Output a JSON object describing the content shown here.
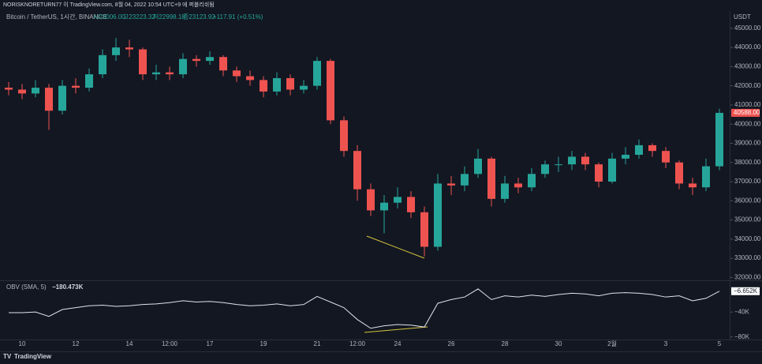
{
  "header": {
    "publisher": "NORISKNORETURN77 이 TradingView.com, 8월 04, 2022 10:54 UTC+9 에 퍼블리쉬됨",
    "currency": "USDT",
    "footer": "TradingView"
  },
  "chart_data": [
    {
      "type": "candlestick",
      "title": "Bitcoin / TetherUS, 1시간, BINANCE",
      "legend": [
        "시23006.00",
        "고23223.32",
        "저22998.18",
        "종23123.92",
        "+117.91 (+0.51%)"
      ],
      "categories": [
        "",
        "10",
        "",
        "",
        "",
        "12",
        "",
        "",
        "",
        "14",
        "",
        "",
        "12:00",
        "",
        "",
        "17",
        "",
        "",
        "",
        "19",
        "",
        "",
        "",
        "21",
        "",
        "",
        "12:00",
        "",
        "",
        "24",
        "",
        "",
        "",
        "26",
        "",
        "",
        "",
        "28",
        "",
        "",
        "",
        "30",
        "",
        "",
        "",
        "2월",
        "",
        "",
        "",
        "3",
        "",
        "",
        "",
        "5"
      ],
      "open": [
        41900,
        41800,
        41600,
        41900,
        40700,
        42000,
        41900,
        42600,
        43600,
        44000,
        43900,
        42600,
        42700,
        42600,
        43400,
        43300,
        43500,
        42800,
        42500,
        42300,
        41700,
        42400,
        41800,
        42000,
        43300,
        40200,
        38600,
        36600,
        35500,
        35900,
        36200,
        35400,
        33600,
        36900,
        36800,
        37400,
        38200,
        36100,
        36900,
        36700,
        37400,
        37900,
        37900,
        38300,
        37900,
        37000,
        38200,
        38400,
        38900,
        38600,
        38000,
        36900,
        36700,
        37800
      ],
      "high": [
        42200,
        42100,
        42300,
        42100,
        42300,
        42400,
        42900,
        43900,
        44500,
        44400,
        44000,
        43100,
        43000,
        43700,
        43600,
        43800,
        43600,
        43000,
        42800,
        42500,
        42700,
        42600,
        42300,
        43500,
        43400,
        40400,
        38900,
        36900,
        36300,
        36700,
        36500,
        35700,
        37400,
        37300,
        37800,
        38700,
        38300,
        37300,
        37200,
        37700,
        38100,
        38300,
        38600,
        38500,
        38000,
        38500,
        38800,
        39200,
        39000,
        38800,
        38100,
        37200,
        38200,
        40800
      ],
      "low": [
        41500,
        41300,
        41400,
        39700,
        40500,
        41600,
        41700,
        42400,
        43300,
        43500,
        42300,
        42300,
        42300,
        42400,
        43000,
        43100,
        42500,
        42200,
        42000,
        41400,
        41500,
        41500,
        41600,
        41800,
        40000,
        38300,
        36000,
        35200,
        34300,
        35600,
        35100,
        33100,
        33400,
        36300,
        36500,
        37200,
        35700,
        35900,
        36400,
        36500,
        37200,
        37500,
        37600,
        37600,
        36700,
        36900,
        37900,
        38200,
        38300,
        37700,
        36600,
        36300,
        36500,
        37600
      ],
      "close": [
        41800,
        41600,
        41900,
        40700,
        42000,
        41900,
        42600,
        43600,
        44000,
        43900,
        42600,
        42700,
        42600,
        43400,
        43300,
        43500,
        42800,
        42500,
        42300,
        41700,
        42400,
        41800,
        42000,
        43300,
        40200,
        38600,
        36600,
        35500,
        35900,
        36200,
        35400,
        33600,
        36900,
        36800,
        37400,
        38200,
        36100,
        36900,
        36700,
        37400,
        37900,
        37900,
        38300,
        37900,
        37000,
        38200,
        38400,
        38900,
        38600,
        38000,
        36900,
        36700,
        37800,
        40588
      ],
      "last_value_label": "40588.00",
      "up_color": "#26a69a",
      "down_color": "#ef5350",
      "ylim": [
        31850,
        45900
      ],
      "yticks": [
        {
          "value": 32000,
          "label": "32000.00"
        },
        {
          "value": 33000,
          "label": "33000.00"
        },
        {
          "value": 34000,
          "label": "34000.00"
        },
        {
          "value": 35000,
          "label": "35000.00"
        },
        {
          "value": 36000,
          "label": "36000.00"
        },
        {
          "value": 37000,
          "label": "37000.00"
        },
        {
          "value": 38000,
          "label": "38000.00"
        },
        {
          "value": 39000,
          "label": "39000.00"
        },
        {
          "value": 40000,
          "label": "40000.00"
        },
        {
          "value": 41000,
          "label": "41000.00"
        },
        {
          "value": 42000,
          "label": "42000.00"
        },
        {
          "value": 43000,
          "label": "43000.00"
        },
        {
          "value": 44000,
          "label": "44000.00"
        },
        {
          "value": 45000,
          "label": "45000.00"
        }
      ]
    },
    {
      "type": "line",
      "title": "OBV (SMA, 5)",
      "legend_value": "−180.473K",
      "color": "#e0e3eb",
      "values": [
        -41,
        -41,
        -40,
        -47,
        -36,
        -33,
        -30,
        -29,
        -31,
        -30,
        -28,
        -27,
        -25,
        -22,
        -24,
        -23,
        -25,
        -28,
        -30,
        -29,
        -27,
        -30,
        -28,
        -15,
        -24,
        -33,
        -52,
        -66,
        -62,
        -60,
        -61,
        -64,
        -26,
        -20,
        -16,
        -3,
        -20,
        -14,
        -16,
        -13,
        -15,
        -12,
        -10,
        -11,
        -14,
        -10,
        -9,
        -10,
        -12,
        -16,
        -14,
        -22,
        -18,
        -6.652
      ],
      "last_value_label": "−6.652K",
      "ylim": [
        -84,
        9.5
      ],
      "yticks": [
        {
          "value": -40,
          "label": "−40K"
        },
        {
          "value": -80,
          "label": "−80K"
        }
      ]
    }
  ]
}
